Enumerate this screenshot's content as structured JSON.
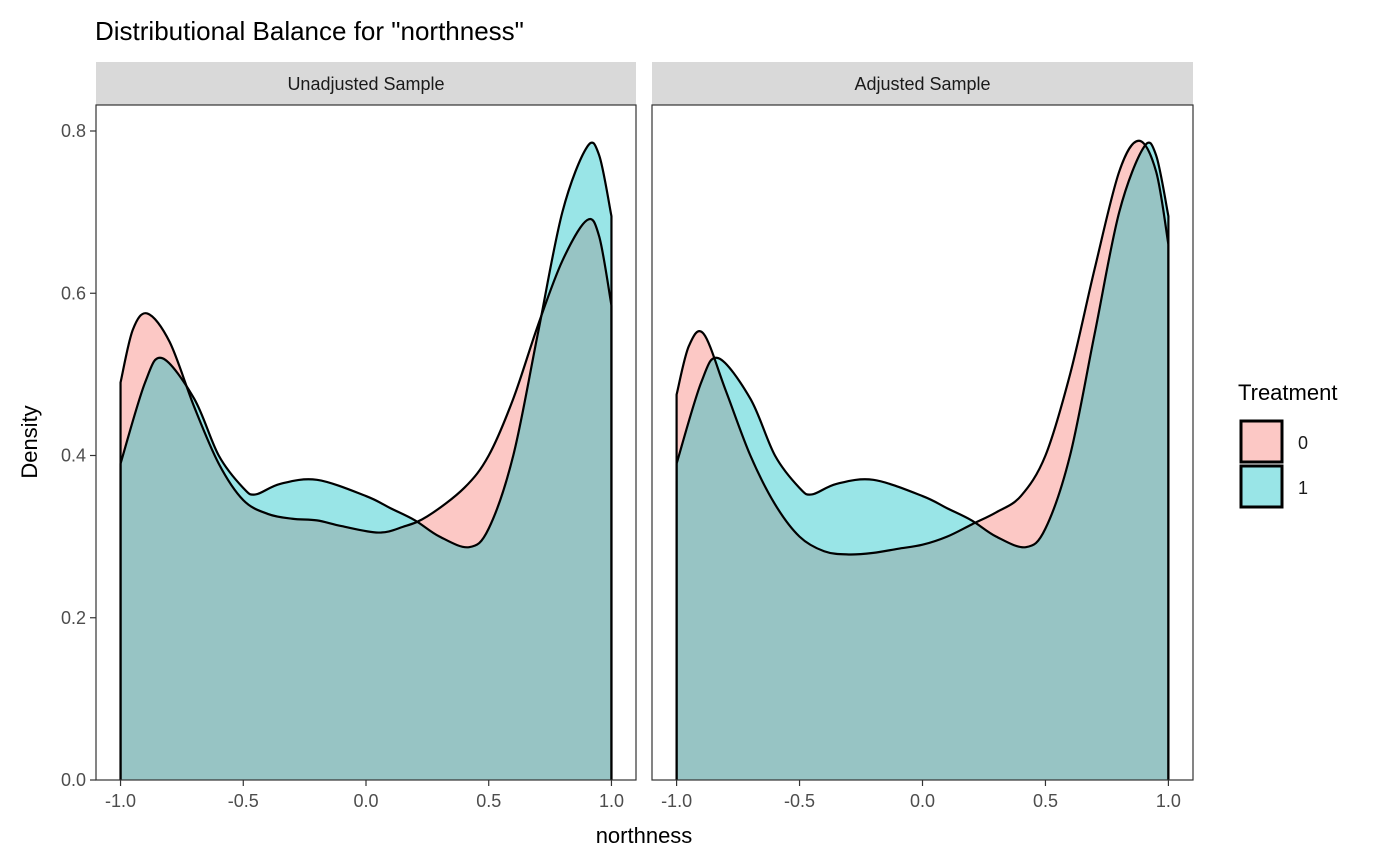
{
  "chart_data": {
    "type": "area",
    "title": "Distributional Balance for \"northness\"",
    "xlabel": "northness",
    "ylabel": "Density",
    "xlim": [
      -1.1,
      1.1
    ],
    "ylim": [
      0,
      0.8
    ],
    "x_ticks": [
      "-1.0",
      "-0.5",
      "0.0",
      "0.5",
      "1.0"
    ],
    "x_tick_values": [
      -1.0,
      -0.5,
      0.0,
      0.5,
      1.0
    ],
    "y_ticks": [
      "0.0",
      "0.2",
      "0.4",
      "0.6",
      "0.8"
    ],
    "y_tick_values": [
      0,
      0.2,
      0.4,
      0.6,
      0.8
    ],
    "legend": {
      "title": "Treatment",
      "position": "right",
      "entries": [
        "0",
        "1"
      ]
    },
    "colors": {
      "0": "#F8766D",
      "1": "#00BFC4"
    },
    "panels": [
      {
        "label": "Unadjusted Sample",
        "series": [
          {
            "name": "0",
            "x": [
              -1.0,
              -0.95,
              -0.89,
              -0.8,
              -0.7,
              -0.6,
              -0.5,
              -0.4,
              -0.3,
              -0.2,
              -0.1,
              0.05,
              0.15,
              0.25,
              0.4,
              0.5,
              0.6,
              0.7,
              0.8,
              0.9,
              0.95,
              1.0
            ],
            "y": [
              0.49,
              0.555,
              0.575,
              0.54,
              0.46,
              0.39,
              0.345,
              0.328,
              0.322,
              0.32,
              0.313,
              0.305,
              0.312,
              0.325,
              0.36,
              0.4,
              0.47,
              0.56,
              0.64,
              0.69,
              0.67,
              0.585
            ]
          },
          {
            "name": "1",
            "x": [
              -1.0,
              -0.9,
              -0.83,
              -0.7,
              -0.6,
              -0.5,
              -0.45,
              -0.35,
              -0.2,
              0.0,
              0.1,
              0.2,
              0.3,
              0.42,
              0.5,
              0.6,
              0.7,
              0.8,
              0.9,
              0.95,
              1.0
            ],
            "y": [
              0.39,
              0.49,
              0.52,
              0.47,
              0.4,
              0.36,
              0.352,
              0.365,
              0.37,
              0.35,
              0.335,
              0.32,
              0.3,
              0.287,
              0.31,
              0.4,
              0.55,
              0.7,
              0.78,
              0.77,
              0.695
            ]
          }
        ]
      },
      {
        "label": "Adjusted Sample",
        "series": [
          {
            "name": "0",
            "x": [
              -1.0,
              -0.95,
              -0.89,
              -0.8,
              -0.7,
              -0.6,
              -0.5,
              -0.4,
              -0.3,
              -0.2,
              -0.1,
              0.0,
              0.1,
              0.2,
              0.3,
              0.4,
              0.5,
              0.6,
              0.7,
              0.8,
              0.88,
              0.95,
              1.0
            ],
            "y": [
              0.475,
              0.535,
              0.55,
              0.48,
              0.4,
              0.34,
              0.3,
              0.282,
              0.278,
              0.28,
              0.285,
              0.29,
              0.3,
              0.315,
              0.33,
              0.35,
              0.4,
              0.5,
              0.63,
              0.75,
              0.788,
              0.75,
              0.66
            ]
          },
          {
            "name": "1",
            "x": [
              -1.0,
              -0.9,
              -0.83,
              -0.7,
              -0.6,
              -0.5,
              -0.45,
              -0.35,
              -0.2,
              0.0,
              0.1,
              0.2,
              0.3,
              0.42,
              0.5,
              0.6,
              0.7,
              0.8,
              0.9,
              0.95,
              1.0
            ],
            "y": [
              0.39,
              0.49,
              0.52,
              0.47,
              0.4,
              0.36,
              0.352,
              0.365,
              0.37,
              0.35,
              0.335,
              0.32,
              0.3,
              0.287,
              0.31,
              0.4,
              0.55,
              0.7,
              0.78,
              0.77,
              0.695
            ]
          }
        ]
      }
    ]
  }
}
